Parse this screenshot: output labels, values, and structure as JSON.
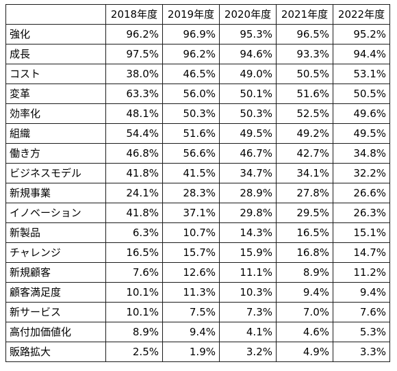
{
  "chart_data": {
    "type": "table",
    "columns": [
      "2018年度",
      "2019年度",
      "2020年度",
      "2021年度",
      "2022年度"
    ],
    "rows": [
      {
        "label": "強化",
        "values": [
          "96.2%",
          "96.9%",
          "95.3%",
          "96.5%",
          "95.2%"
        ]
      },
      {
        "label": "成長",
        "values": [
          "97.5%",
          "96.2%",
          "94.6%",
          "93.3%",
          "94.4%"
        ]
      },
      {
        "label": "コスト",
        "values": [
          "38.0%",
          "46.5%",
          "49.0%",
          "50.5%",
          "53.1%"
        ]
      },
      {
        "label": "変革",
        "values": [
          "63.3%",
          "56.0%",
          "50.1%",
          "51.6%",
          "50.5%"
        ]
      },
      {
        "label": "効率化",
        "values": [
          "48.1%",
          "50.3%",
          "50.3%",
          "52.5%",
          "49.6%"
        ]
      },
      {
        "label": "組織",
        "values": [
          "54.4%",
          "51.6%",
          "49.5%",
          "49.2%",
          "49.5%"
        ]
      },
      {
        "label": "働き方",
        "values": [
          "46.8%",
          "56.6%",
          "46.7%",
          "42.7%",
          "34.8%"
        ]
      },
      {
        "label": "ビジネスモデル",
        "values": [
          "41.8%",
          "41.5%",
          "34.7%",
          "34.1%",
          "32.2%"
        ]
      },
      {
        "label": "新規事業",
        "values": [
          "24.1%",
          "28.3%",
          "28.9%",
          "27.8%",
          "26.6%"
        ]
      },
      {
        "label": "イノベーション",
        "values": [
          "41.8%",
          "37.1%",
          "29.8%",
          "29.5%",
          "26.3%"
        ]
      },
      {
        "label": "新製品",
        "values": [
          "6.3%",
          "10.7%",
          "14.3%",
          "16.5%",
          "15.1%"
        ]
      },
      {
        "label": "チャレンジ",
        "values": [
          "16.5%",
          "15.7%",
          "15.9%",
          "16.8%",
          "14.7%"
        ]
      },
      {
        "label": "新規顧客",
        "values": [
          "7.6%",
          "12.6%",
          "11.1%",
          "8.9%",
          "11.2%"
        ]
      },
      {
        "label": "顧客満足度",
        "values": [
          "10.1%",
          "11.3%",
          "10.3%",
          "9.4%",
          "9.4%"
        ]
      },
      {
        "label": "新サービス",
        "values": [
          "10.1%",
          "7.5%",
          "7.3%",
          "7.0%",
          "7.6%"
        ]
      },
      {
        "label": "高付加価値化",
        "values": [
          "8.9%",
          "9.4%",
          "4.1%",
          "4.6%",
          "5.3%"
        ]
      },
      {
        "label": "販路拡大",
        "values": [
          "2.5%",
          "1.9%",
          "3.2%",
          "4.9%",
          "3.3%"
        ]
      }
    ]
  }
}
